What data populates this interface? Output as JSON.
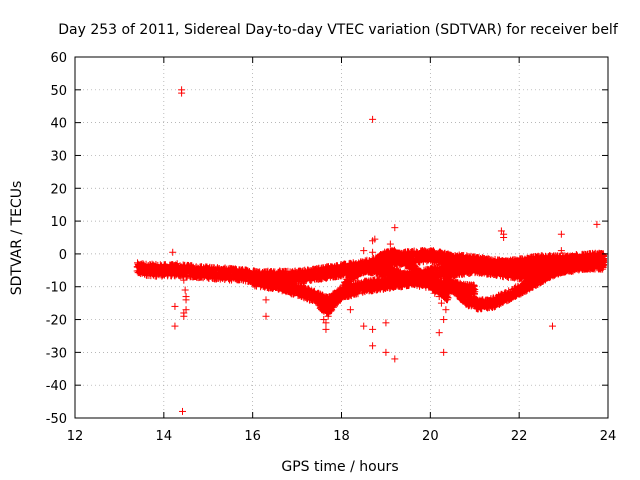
{
  "chart_data": {
    "type": "scatter",
    "title": "Day 253 of 2011, Sidereal Day-to-day VTEC variation (SDTVAR) for receiver belf",
    "xlabel": "GPS time / hours",
    "ylabel": "SDTVAR / TECUs",
    "xlim": [
      12,
      24
    ],
    "ylim": [
      -50,
      60
    ],
    "xticks": [
      12,
      14,
      16,
      18,
      20,
      22,
      24
    ],
    "yticks": [
      -50,
      -40,
      -30,
      -20,
      -10,
      0,
      10,
      20,
      30,
      40,
      50,
      60
    ],
    "grid": true,
    "marker": "+",
    "series": [
      {
        "name": "SDTVAR",
        "color": "#ff0000",
        "bands": [
          {
            "x": [
              13.4,
              13.8,
              14.3,
              14.8,
              15.3,
              15.8,
              16.3,
              16.8,
              17.3,
              17.7,
              18.0,
              18.5,
              19.0,
              19.5,
              20.0,
              20.3,
              20.6,
              21.2,
              21.8,
              22.5,
              23.2,
              23.9
            ],
            "y": [
              -4.5,
              -5.0,
              -5.0,
              -5.5,
              -6.0,
              -6.5,
              -7.0,
              -7.0,
              -6.5,
              -5.5,
              -5.0,
              -4.0,
              -2.0,
              -1.0,
              -0.5,
              -1.5,
              -2.0,
              -3.0,
              -4.0,
              -4.0,
              -3.0,
              -2.5
            ],
            "halfwidth": 1.8
          },
          {
            "x": [
              16.0,
              16.5,
              17.0,
              17.4,
              17.7,
              18.0,
              18.5,
              19.0,
              19.5,
              20.0,
              20.5,
              21.0,
              21.5,
              22.0,
              22.5,
              23.0,
              23.5,
              23.9
            ],
            "y": [
              -8.0,
              -9.0,
              -11.0,
              -13.0,
              -15.0,
              -12.0,
              -10.0,
              -9.0,
              -8.0,
              -6.0,
              -5.0,
              -4.0,
              -5.0,
              -6.0,
              -5.0,
              -4.0,
              -3.0,
              -3.0
            ],
            "halfwidth": 1.7
          },
          {
            "x": [
              17.5,
              17.7,
              18.0,
              18.2,
              18.5,
              18.8,
              19.2,
              19.6,
              20.0,
              20.5,
              21.0
            ],
            "y": [
              -15.0,
              -17.0,
              -12.0,
              -7.0,
              -4.0,
              -4.5,
              -6.0,
              -8.0,
              -9.0,
              -10.0,
              -11.0
            ],
            "halfwidth": 1.5
          },
          {
            "x": [
              20.3,
              20.5,
              20.8,
              21.1,
              21.4,
              21.7,
              22.0,
              22.4,
              22.8,
              23.3,
              23.9
            ],
            "y": [
              -5.0,
              -10.0,
              -14.0,
              -15.5,
              -15.0,
              -13.0,
              -11.0,
              -8.0,
              -5.0,
              -3.0,
              -2.0
            ],
            "halfwidth": 1.5
          },
          {
            "x": [
              18.6,
              18.9,
              19.2,
              19.5,
              19.8,
              20.1,
              20.4
            ],
            "y": [
              -5.0,
              -1.0,
              0.0,
              -3.0,
              -7.0,
              -10.0,
              -13.0
            ],
            "halfwidth": 1.3
          },
          {
            "x": [
              20.2,
              20.5,
              21.0,
              21.5,
              22.0,
              22.5,
              23.0,
              23.5,
              23.9
            ],
            "y": [
              -1.0,
              -2.0,
              -3.0,
              -4.0,
              -3.0,
              -2.0,
              -2.0,
              -1.5,
              -1.0
            ],
            "halfwidth": 1.5
          }
        ],
        "outliers": [
          [
            14.2,
            0.5
          ],
          [
            14.3,
            -3.0
          ],
          [
            14.25,
            -16.0
          ],
          [
            14.25,
            -22.0
          ],
          [
            14.4,
            50.0
          ],
          [
            14.4,
            49.0
          ],
          [
            14.42,
            -48.0
          ],
          [
            14.45,
            -5.0
          ],
          [
            14.45,
            -8.0
          ],
          [
            14.48,
            -11.0
          ],
          [
            14.5,
            -13.0
          ],
          [
            14.5,
            -14.0
          ],
          [
            14.5,
            -17.0
          ],
          [
            14.45,
            -18.0
          ],
          [
            14.45,
            -19.0
          ],
          [
            14.5,
            -7.0
          ],
          [
            14.55,
            -4.5
          ],
          [
            16.3,
            -14.0
          ],
          [
            16.3,
            -19.0
          ],
          [
            17.6,
            -20.0
          ],
          [
            17.65,
            -21.0
          ],
          [
            17.65,
            -23.0
          ],
          [
            17.7,
            -19.0
          ],
          [
            18.2,
            -17.0
          ],
          [
            18.5,
            1.0
          ],
          [
            18.5,
            -22.0
          ],
          [
            18.7,
            41.0
          ],
          [
            18.7,
            -23.0
          ],
          [
            18.7,
            -28.0
          ],
          [
            18.7,
            4.0
          ],
          [
            18.75,
            4.5
          ],
          [
            18.7,
            0.5
          ],
          [
            18.8,
            -2.0
          ],
          [
            18.8,
            -5.0
          ],
          [
            19.0,
            -21.0
          ],
          [
            19.0,
            -30.0
          ],
          [
            19.1,
            3.0
          ],
          [
            19.2,
            8.0
          ],
          [
            19.2,
            -32.0
          ],
          [
            20.1,
            -12.0
          ],
          [
            20.2,
            -13.0
          ],
          [
            20.2,
            -24.0
          ],
          [
            20.25,
            -15.0
          ],
          [
            20.3,
            -30.0
          ],
          [
            20.3,
            -20.0
          ],
          [
            20.35,
            -17.0
          ],
          [
            20.3,
            -10.0
          ],
          [
            20.9,
            -13.0
          ],
          [
            21.6,
            7.0
          ],
          [
            21.65,
            6.0
          ],
          [
            21.65,
            5.0
          ],
          [
            22.75,
            -22.0
          ],
          [
            22.95,
            6.0
          ],
          [
            22.95,
            1.0
          ],
          [
            23.75,
            9.0
          ],
          [
            23.9,
            -0.5
          ]
        ]
      }
    ]
  }
}
